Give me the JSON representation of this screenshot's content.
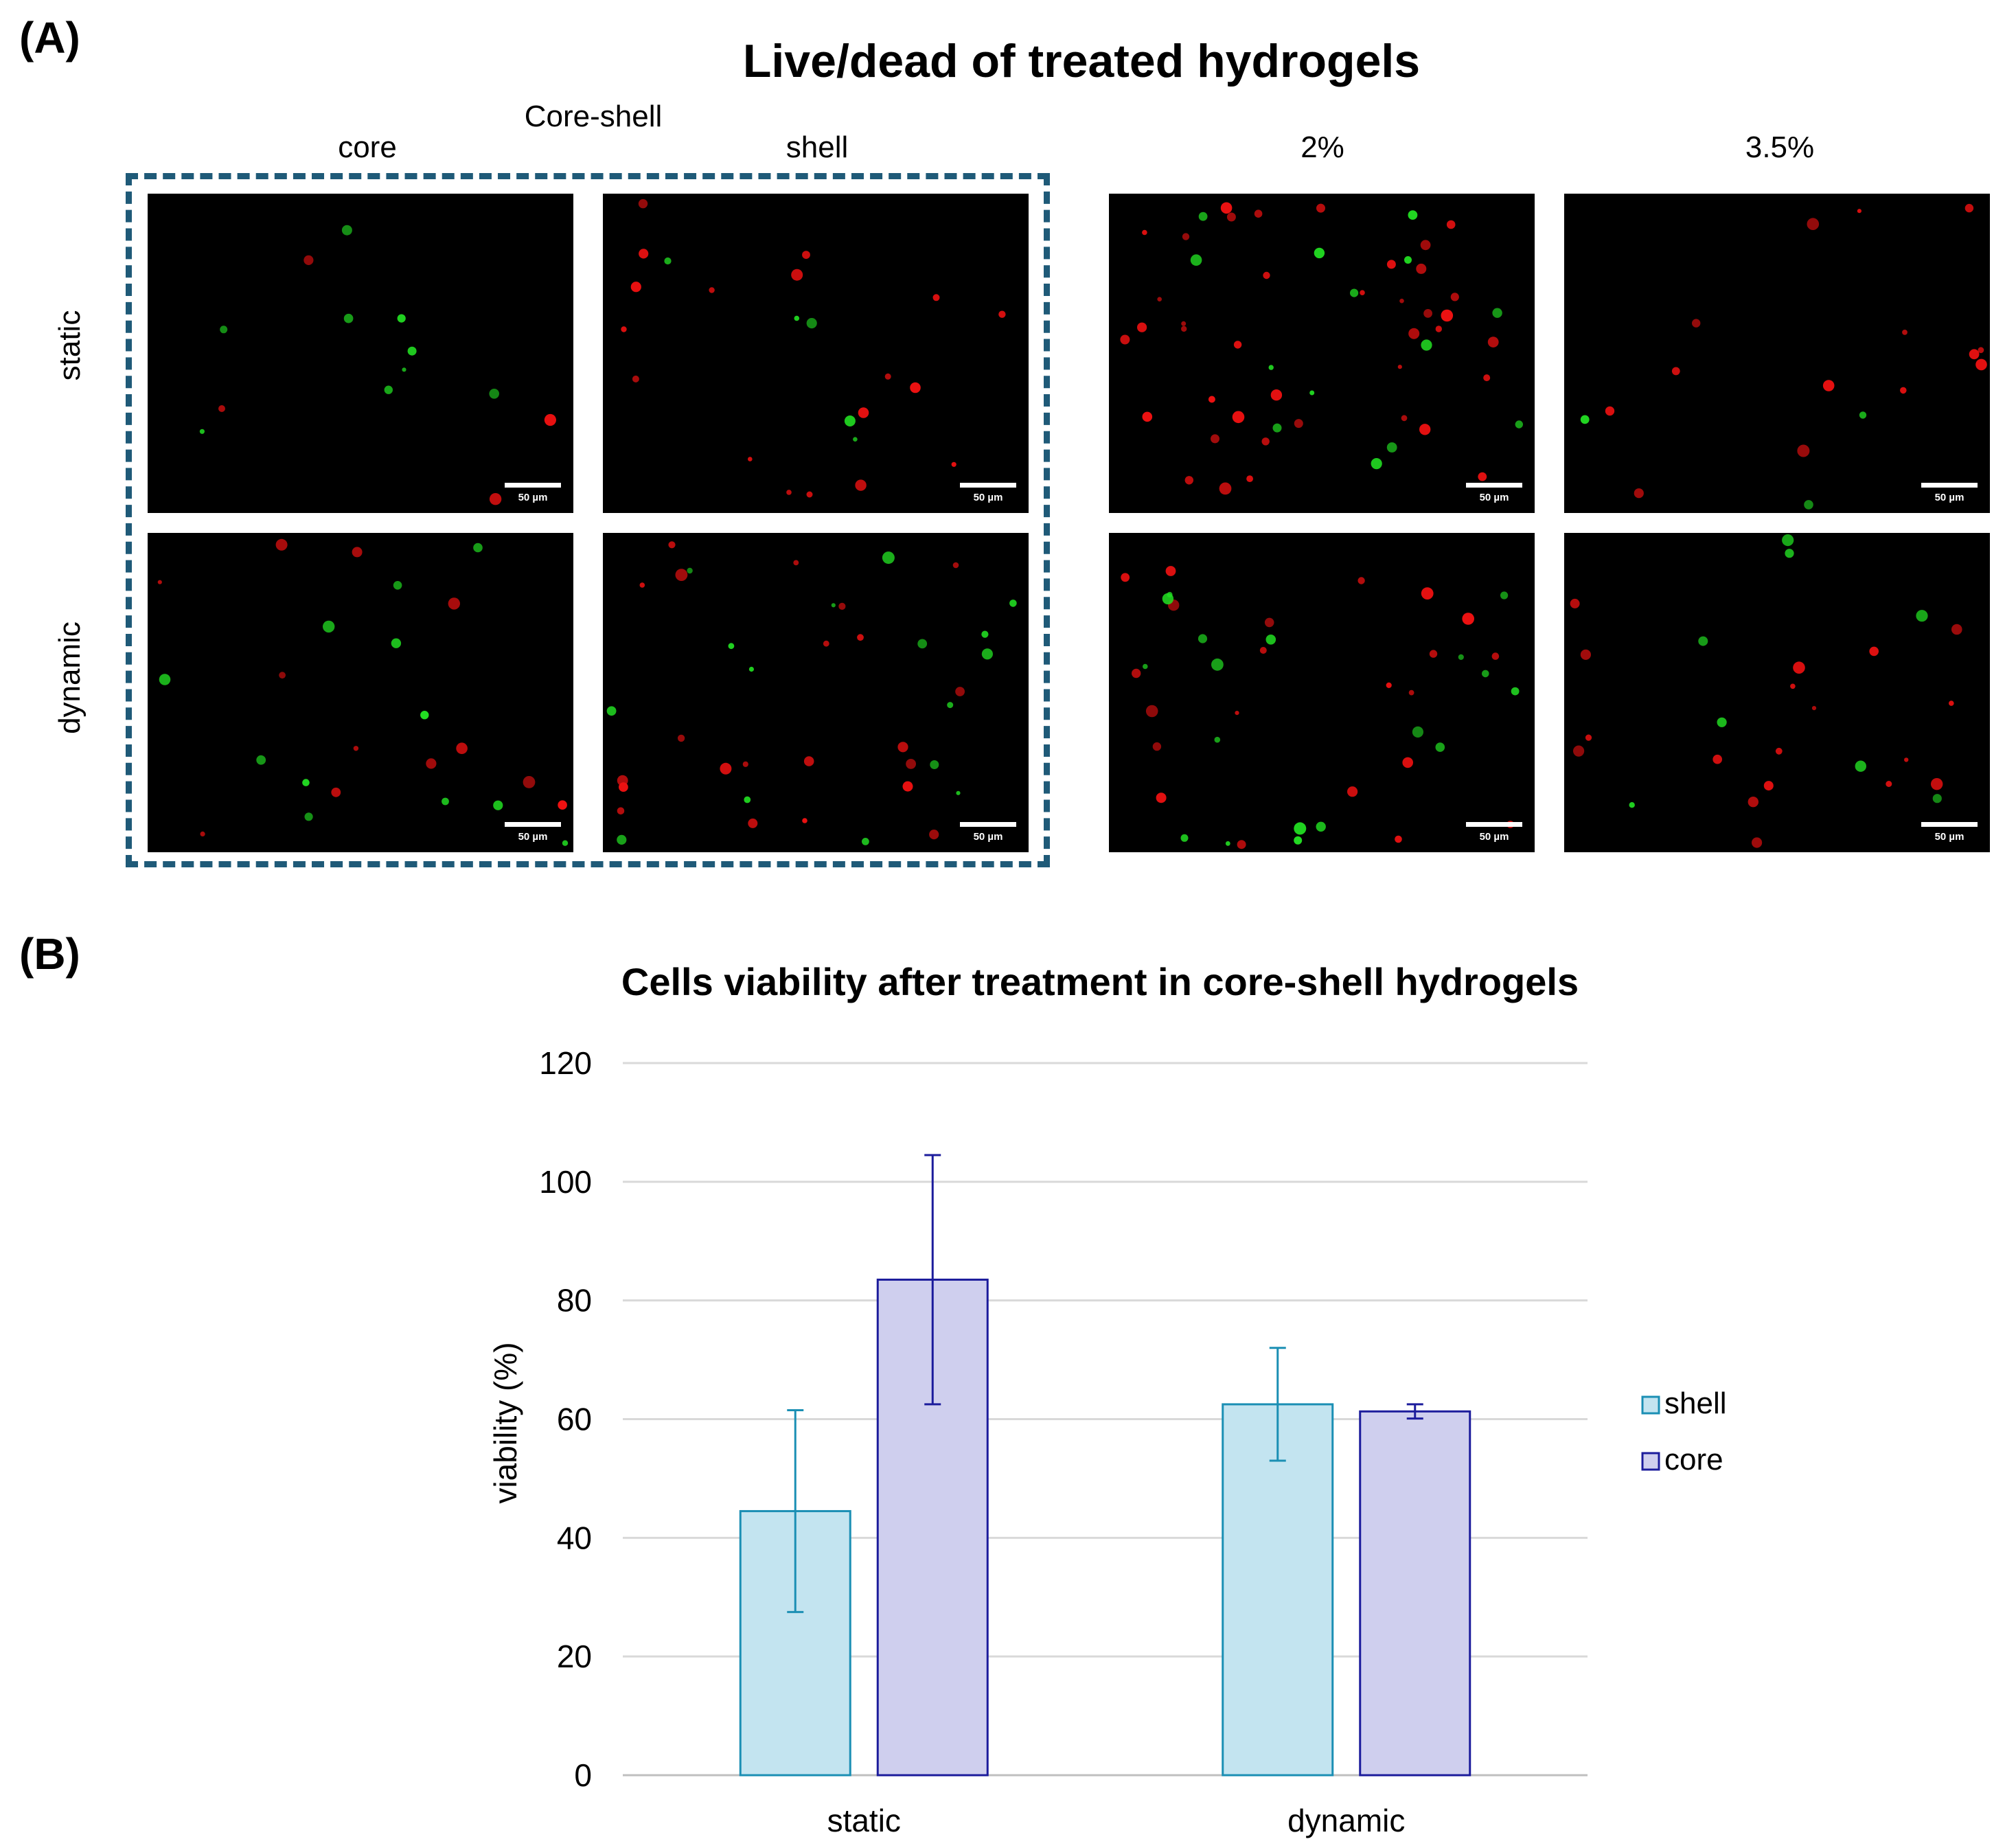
{
  "panel_a": {
    "label": "(A)",
    "title": "Live/dead of treated hydrogels",
    "group_label": "Core-shell",
    "columns": [
      "core",
      "shell",
      "2%",
      "3.5%"
    ],
    "rows": [
      "static",
      "dynamic"
    ],
    "scale_bar": "50 µm",
    "colors": {
      "live": "#22dd22",
      "dead": "#ee1111",
      "group_box": "#1f5a78"
    }
  },
  "panel_b": {
    "label": "(B)"
  },
  "chart_data": {
    "type": "bar",
    "title": "Cells viability after treatment in core-shell hydrogels",
    "xlabel": "",
    "ylabel": "viability (%)",
    "ylim": [
      0,
      120
    ],
    "yticks": [
      0,
      20,
      40,
      60,
      80,
      100,
      120
    ],
    "categories": [
      "static",
      "dynamic"
    ],
    "grid": true,
    "legend_position": "right",
    "series": [
      {
        "name": "shell",
        "values": [
          44.5,
          62.5
        ],
        "error": [
          17,
          9.5
        ],
        "fill": "#c3e4f0",
        "stroke": "#1b8fb4"
      },
      {
        "name": "core",
        "values": [
          83.5,
          61.3
        ],
        "error": [
          21,
          1.2
        ],
        "fill": "#cfcfee",
        "stroke": "#1c1c9c"
      }
    ]
  }
}
